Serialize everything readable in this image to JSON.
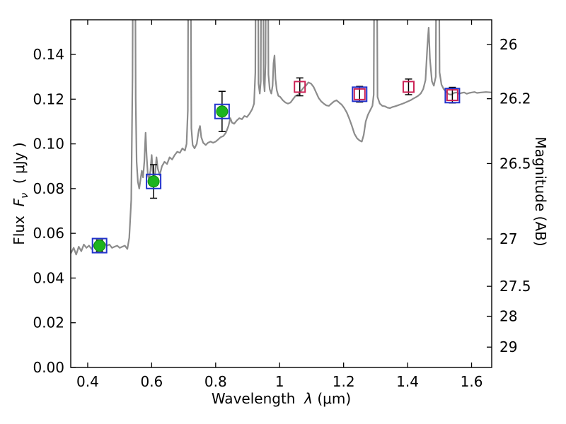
{
  "chart_data": {
    "type": "line",
    "title": "",
    "xlabel_full": "Wavelength λ (μm)",
    "ylabel_left_full": "Flux Fν ( μJy )",
    "ylabel_right_full": "Magnitude (AB)",
    "x_range": [
      0.347,
      1.663
    ],
    "y_range": [
      0.0,
      0.1555
    ],
    "grid": false,
    "legend": "none",
    "colors": {
      "spectrum": "#8c8c8c",
      "observed": "#1db41d",
      "blue_square": "#2233cc",
      "red_square": "#cc2255",
      "error_bar": "#000000",
      "axis": "#000000"
    },
    "x_ticks": [
      {
        "label": "0.4",
        "value": 0.4
      },
      {
        "label": "0.6",
        "value": 0.6
      },
      {
        "label": "0.8",
        "value": 0.8
      },
      {
        "label": "1",
        "value": 1.0
      },
      {
        "label": "1.2",
        "value": 1.2
      },
      {
        "label": "1.4",
        "value": 1.4
      },
      {
        "label": "1.6",
        "value": 1.6
      }
    ],
    "y_left_ticks": [
      {
        "label": "0.00",
        "value": 0.0
      },
      {
        "label": "0.02",
        "value": 0.02
      },
      {
        "label": "0.04",
        "value": 0.04
      },
      {
        "label": "0.06",
        "value": 0.06
      },
      {
        "label": "0.08",
        "value": 0.08
      },
      {
        "label": "0.10",
        "value": 0.1
      },
      {
        "label": "0.12",
        "value": 0.12
      },
      {
        "label": "0.14",
        "value": 0.14
      }
    ],
    "y_right_ticks": [
      {
        "label": "26",
        "flux": 0.1445
      },
      {
        "label": "26.2",
        "flux": 0.1202
      },
      {
        "label": "26.5",
        "flux": 0.0912
      },
      {
        "label": "27",
        "flux": 0.0575
      },
      {
        "label": "27.5",
        "flux": 0.0363
      },
      {
        "label": "28",
        "flux": 0.0229
      },
      {
        "label": "29",
        "flux": 0.0091
      }
    ],
    "series": [
      {
        "name": "model-spectrum",
        "type": "line",
        "color": "#8c8c8c"
      },
      {
        "name": "observed-photometry",
        "type": "scatter-circle",
        "color": "#1db41d"
      },
      {
        "name": "observed-band-squares",
        "type": "scatter-square",
        "color": "#2233cc"
      },
      {
        "name": "model-photometry-squares",
        "type": "scatter-square",
        "color": "#cc2255"
      }
    ],
    "observed_points": [
      {
        "x": 0.437,
        "y": 0.0545,
        "err": 0.0025
      },
      {
        "x": 0.606,
        "y": 0.0832,
        "err": 0.0075
      },
      {
        "x": 0.82,
        "y": 0.1145,
        "err": 0.009
      }
    ],
    "blue_squares": [
      {
        "x": 0.437,
        "y": 0.0545
      },
      {
        "x": 0.606,
        "y": 0.0832
      },
      {
        "x": 0.82,
        "y": 0.1145
      },
      {
        "x": 1.25,
        "y": 0.1222
      },
      {
        "x": 1.54,
        "y": 0.1216
      }
    ],
    "red_squares": [
      {
        "x": 1.063,
        "y": 0.1255,
        "err": 0.004
      },
      {
        "x": 1.25,
        "y": 0.1222,
        "err": 0.0035
      },
      {
        "x": 1.403,
        "y": 0.1255,
        "err": 0.0035
      },
      {
        "x": 1.54,
        "y": 0.1218,
        "err": 0.0035
      }
    ],
    "spectrum": [
      [
        0.347,
        0.051
      ],
      [
        0.356,
        0.0535
      ],
      [
        0.364,
        0.0505
      ],
      [
        0.372,
        0.054
      ],
      [
        0.38,
        0.052
      ],
      [
        0.388,
        0.055
      ],
      [
        0.396,
        0.0535
      ],
      [
        0.404,
        0.0545
      ],
      [
        0.412,
        0.053
      ],
      [
        0.42,
        0.055
      ],
      [
        0.428,
        0.054
      ],
      [
        0.436,
        0.0555
      ],
      [
        0.444,
        0.054
      ],
      [
        0.452,
        0.0555
      ],
      [
        0.46,
        0.0545
      ],
      [
        0.468,
        0.055
      ],
      [
        0.476,
        0.0535
      ],
      [
        0.484,
        0.054
      ],
      [
        0.492,
        0.0545
      ],
      [
        0.5,
        0.0535
      ],
      [
        0.508,
        0.054
      ],
      [
        0.516,
        0.0545
      ],
      [
        0.524,
        0.053
      ],
      [
        0.53,
        0.058
      ],
      [
        0.536,
        0.075
      ],
      [
        0.54,
        0.13
      ],
      [
        0.543,
        0.25
      ],
      [
        0.547,
        0.25
      ],
      [
        0.55,
        0.12
      ],
      [
        0.553,
        0.092
      ],
      [
        0.557,
        0.083
      ],
      [
        0.561,
        0.08
      ],
      [
        0.565,
        0.084
      ],
      [
        0.569,
        0.088
      ],
      [
        0.573,
        0.085
      ],
      [
        0.577,
        0.092
      ],
      [
        0.581,
        0.105
      ],
      [
        0.584,
        0.095
      ],
      [
        0.588,
        0.086
      ],
      [
        0.592,
        0.084
      ],
      [
        0.596,
        0.088
      ],
      [
        0.6,
        0.095
      ],
      [
        0.603,
        0.088
      ],
      [
        0.607,
        0.084
      ],
      [
        0.611,
        0.087
      ],
      [
        0.615,
        0.094
      ],
      [
        0.619,
        0.089
      ],
      [
        0.625,
        0.086
      ],
      [
        0.632,
        0.09
      ],
      [
        0.64,
        0.092
      ],
      [
        0.648,
        0.091
      ],
      [
        0.656,
        0.094
      ],
      [
        0.664,
        0.093
      ],
      [
        0.672,
        0.095
      ],
      [
        0.68,
        0.0965
      ],
      [
        0.688,
        0.096
      ],
      [
        0.696,
        0.098
      ],
      [
        0.704,
        0.097
      ],
      [
        0.709,
        0.1
      ],
      [
        0.713,
        0.115
      ],
      [
        0.716,
        0.25
      ],
      [
        0.72,
        0.25
      ],
      [
        0.724,
        0.107
      ],
      [
        0.728,
        0.0995
      ],
      [
        0.734,
        0.098
      ],
      [
        0.741,
        0.1
      ],
      [
        0.747,
        0.106
      ],
      [
        0.751,
        0.108
      ],
      [
        0.755,
        0.103
      ],
      [
        0.761,
        0.1005
      ],
      [
        0.769,
        0.0995
      ],
      [
        0.776,
        0.1005
      ],
      [
        0.784,
        0.101
      ],
      [
        0.792,
        0.1005
      ],
      [
        0.8,
        0.101
      ],
      [
        0.808,
        0.102
      ],
      [
        0.816,
        0.103
      ],
      [
        0.824,
        0.1035
      ],
      [
        0.832,
        0.105
      ],
      [
        0.84,
        0.108
      ],
      [
        0.846,
        0.1115
      ],
      [
        0.851,
        0.1095
      ],
      [
        0.858,
        0.109
      ],
      [
        0.866,
        0.1105
      ],
      [
        0.874,
        0.1115
      ],
      [
        0.882,
        0.111
      ],
      [
        0.89,
        0.1125
      ],
      [
        0.898,
        0.112
      ],
      [
        0.906,
        0.1135
      ],
      [
        0.914,
        0.1155
      ],
      [
        0.92,
        0.118
      ],
      [
        0.924,
        0.132
      ],
      [
        0.927,
        0.25
      ],
      [
        0.931,
        0.25
      ],
      [
        0.934,
        0.127
      ],
      [
        0.938,
        0.1225
      ],
      [
        0.941,
        0.128
      ],
      [
        0.944,
        0.25
      ],
      [
        0.947,
        0.25
      ],
      [
        0.95,
        0.129
      ],
      [
        0.953,
        0.1235
      ],
      [
        0.956,
        0.136
      ],
      [
        0.959,
        0.25
      ],
      [
        0.962,
        0.25
      ],
      [
        0.965,
        0.131
      ],
      [
        0.969,
        0.1245
      ],
      [
        0.974,
        0.1225
      ],
      [
        0.978,
        0.126
      ],
      [
        0.981,
        0.136
      ],
      [
        0.984,
        0.1395
      ],
      [
        0.987,
        0.129
      ],
      [
        0.991,
        0.124
      ],
      [
        0.996,
        0.1215
      ],
      [
        1.002,
        0.121
      ],
      [
        1.01,
        0.1195
      ],
      [
        1.018,
        0.1185
      ],
      [
        1.026,
        0.118
      ],
      [
        1.034,
        0.1185
      ],
      [
        1.042,
        0.12
      ],
      [
        1.05,
        0.1215
      ],
      [
        1.058,
        0.122
      ],
      [
        1.066,
        0.1235
      ],
      [
        1.074,
        0.125
      ],
      [
        1.082,
        0.126
      ],
      [
        1.09,
        0.1275
      ],
      [
        1.098,
        0.127
      ],
      [
        1.106,
        0.1255
      ],
      [
        1.114,
        0.123
      ],
      [
        1.122,
        0.1205
      ],
      [
        1.13,
        0.119
      ],
      [
        1.138,
        0.118
      ],
      [
        1.146,
        0.1172
      ],
      [
        1.154,
        0.117
      ],
      [
        1.162,
        0.118
      ],
      [
        1.17,
        0.119
      ],
      [
        1.178,
        0.1195
      ],
      [
        1.186,
        0.1185
      ],
      [
        1.194,
        0.1175
      ],
      [
        1.202,
        0.116
      ],
      [
        1.21,
        0.114
      ],
      [
        1.218,
        0.1112
      ],
      [
        1.226,
        0.108
      ],
      [
        1.234,
        0.1045
      ],
      [
        1.242,
        0.1025
      ],
      [
        1.25,
        0.1015
      ],
      [
        1.257,
        0.101
      ],
      [
        1.263,
        0.104
      ],
      [
        1.269,
        0.11
      ],
      [
        1.276,
        0.113
      ],
      [
        1.283,
        0.115
      ],
      [
        1.29,
        0.117
      ],
      [
        1.294,
        0.122
      ],
      [
        1.298,
        0.25
      ],
      [
        1.302,
        0.25
      ],
      [
        1.306,
        0.121
      ],
      [
        1.313,
        0.118
      ],
      [
        1.321,
        0.117
      ],
      [
        1.329,
        0.1168
      ],
      [
        1.337,
        0.1162
      ],
      [
        1.345,
        0.116
      ],
      [
        1.353,
        0.1165
      ],
      [
        1.361,
        0.1168
      ],
      [
        1.369,
        0.1172
      ],
      [
        1.377,
        0.1176
      ],
      [
        1.385,
        0.118
      ],
      [
        1.393,
        0.1185
      ],
      [
        1.401,
        0.119
      ],
      [
        1.409,
        0.1195
      ],
      [
        1.417,
        0.1202
      ],
      [
        1.425,
        0.1208
      ],
      [
        1.433,
        0.1215
      ],
      [
        1.441,
        0.1225
      ],
      [
        1.449,
        0.1245
      ],
      [
        1.456,
        0.1285
      ],
      [
        1.462,
        0.144
      ],
      [
        1.466,
        0.152
      ],
      [
        1.47,
        0.138
      ],
      [
        1.476,
        0.128
      ],
      [
        1.482,
        0.126
      ],
      [
        1.488,
        0.13
      ],
      [
        1.492,
        0.25
      ],
      [
        1.496,
        0.25
      ],
      [
        1.5,
        0.132
      ],
      [
        1.506,
        0.1265
      ],
      [
        1.513,
        0.1245
      ],
      [
        1.521,
        0.1232
      ],
      [
        1.529,
        0.1222
      ],
      [
        1.537,
        0.122
      ],
      [
        1.545,
        0.1228
      ],
      [
        1.553,
        0.123
      ],
      [
        1.561,
        0.1224
      ],
      [
        1.569,
        0.1228
      ],
      [
        1.577,
        0.123
      ],
      [
        1.585,
        0.1224
      ],
      [
        1.593,
        0.1228
      ],
      [
        1.601,
        0.123
      ],
      [
        1.609,
        0.1232
      ],
      [
        1.617,
        0.1228
      ],
      [
        1.63,
        0.123
      ],
      [
        1.645,
        0.1232
      ],
      [
        1.663,
        0.123
      ]
    ]
  },
  "labels": {
    "x_pre": "Wavelength  ",
    "x_lambda": "λ",
    "x_unit": " (μm)",
    "flux_pre": "Flux  ",
    "flux_F": "F",
    "flux_sub": "ν",
    "flux_unit": "  ( μJy )",
    "right_axis": "Magnitude (AB)"
  }
}
